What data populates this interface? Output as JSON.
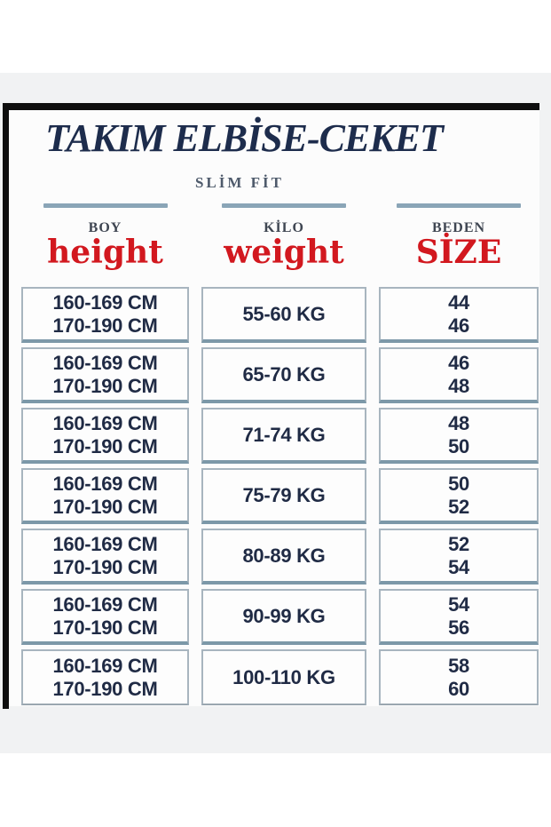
{
  "header": {
    "title": "TAKIM ELBİSE-CEKET",
    "subtitle": "SLİM FİT"
  },
  "columns": [
    {
      "header": "BOY",
      "label": "height"
    },
    {
      "header": "KİLO",
      "label": "weight"
    },
    {
      "header": "BEDEN",
      "label": "SİZE"
    }
  ],
  "rows": [
    {
      "height_lines": [
        "160-169 CM",
        "170-190 CM"
      ],
      "weight": "55-60 KG",
      "sizes": [
        "44",
        "46"
      ]
    },
    {
      "height_lines": [
        "160-169 CM",
        "170-190 CM"
      ],
      "weight": "65-70 KG",
      "sizes": [
        "46",
        "48"
      ]
    },
    {
      "height_lines": [
        "160-169 CM",
        "170-190 CM"
      ],
      "weight": "71-74 KG",
      "sizes": [
        "48",
        "50"
      ]
    },
    {
      "height_lines": [
        "160-169 CM",
        "170-190 CM"
      ],
      "weight": "75-79 KG",
      "sizes": [
        "50",
        "52"
      ]
    },
    {
      "height_lines": [
        "160-169 CM",
        "170-190 CM"
      ],
      "weight": "80-89 KG",
      "sizes": [
        "52",
        "54"
      ]
    },
    {
      "height_lines": [
        "160-169 CM",
        "170-190 CM"
      ],
      "weight": "90-99 KG",
      "sizes": [
        "54",
        "56"
      ]
    },
    {
      "height_lines": [
        "160-169 CM",
        "170-190 CM"
      ],
      "weight": "100-110 KG",
      "sizes": [
        "58",
        "60"
      ]
    }
  ],
  "colors": {
    "accent_red": "#d2181f",
    "navy_text": "#202b45",
    "title_navy": "#1d2c4c",
    "steel_blue_line": "#8aa5b7",
    "teal_cell_border": "#7c98a8",
    "frame_black": "#0e0e0e"
  }
}
